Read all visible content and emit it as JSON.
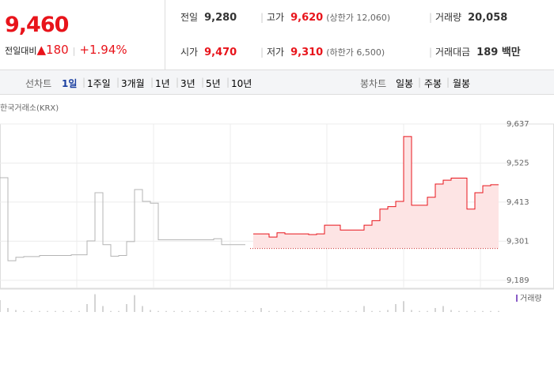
{
  "quote": {
    "price": "9,460",
    "change_label": "전일대비",
    "change": "180",
    "change_pct": "+1.94%"
  },
  "stats": [
    {
      "label": "전일",
      "value": "9,280"
    },
    {
      "label": "고가",
      "value": "9,620",
      "note": "(상한가 12,060)"
    },
    {
      "label": "거래량",
      "value": "20,058"
    },
    {
      "label": "시가",
      "value": "9,470"
    },
    {
      "label": "저가",
      "value": "9,310",
      "note": "(하한가 6,500)"
    },
    {
      "label": "거래대금",
      "value": "189 백만"
    }
  ],
  "tabs": {
    "line_label": "선차트",
    "line": [
      "1일",
      "1주일",
      "3개월",
      "1년",
      "3년",
      "5년",
      "10년"
    ],
    "candle_label": "봉차트",
    "candle": [
      "일봉",
      "주봉",
      "월봉"
    ]
  },
  "chart_data": {
    "type": "line",
    "source": "한국거래소(KRX)",
    "categories": [
      null,
      null,
      null,
      null,
      null,
      null,
      null,
      null,
      null,
      null,
      null,
      null,
      null,
      null,
      null,
      null,
      null,
      null,
      null,
      null,
      null,
      null,
      null,
      null,
      null,
      null,
      null,
      null,
      null,
      null,
      null,
      null,
      null,
      null,
      null,
      null,
      null,
      null,
      null,
      null,
      null,
      null,
      null,
      null,
      null,
      null,
      null,
      null,
      null,
      null,
      null,
      null,
      null,
      null,
      null,
      null,
      null,
      null,
      null,
      null,
      null,
      null,
      null,
      null
    ],
    "series": [
      {
        "color": "#b4b4b4",
        "values": [
          9483,
          9245,
          9255,
          9257,
          9257,
          9260,
          9260,
          9260,
          9260,
          9262,
          9262,
          9302,
          9440,
          9291,
          9258,
          9260,
          9300,
          9449,
          9415,
          9410,
          9305,
          9305,
          9305,
          9305,
          9305,
          9305,
          9305,
          9308,
          9291,
          9291,
          9291,
          9291,
          null,
          null,
          null,
          null,
          null,
          null,
          null,
          null,
          null,
          null,
          null,
          null,
          null,
          null,
          null,
          null,
          null,
          null,
          null,
          null,
          null,
          null,
          null,
          null,
          null,
          null,
          null,
          null,
          null,
          null,
          null,
          null
        ]
      },
      {
        "color": "#e8141b",
        "fill": "#fde4e4",
        "values": [
          null,
          null,
          null,
          null,
          null,
          null,
          null,
          null,
          null,
          null,
          null,
          null,
          null,
          null,
          null,
          null,
          null,
          null,
          null,
          null,
          null,
          null,
          null,
          null,
          null,
          null,
          null,
          null,
          null,
          null,
          null,
          null,
          9322,
          9322,
          9313,
          9325,
          9322,
          9322,
          9322,
          9320,
          9322,
          9347,
          9347,
          9333,
          9333,
          9333,
          9347,
          9360,
          9393,
          9400,
          9415,
          9601,
          9404,
          9404,
          9427,
          9465,
          9476,
          9482,
          9482,
          9393,
          9440,
          9460,
          9463,
          9463
        ]
      }
    ],
    "reference_line": 9280,
    "ylim": [
      9166,
      9637
    ],
    "yticks": [
      {
        "value": 9189,
        "label": "9,189"
      },
      {
        "value": 9301,
        "label": "9,301"
      },
      {
        "value": 9413,
        "label": "9,413"
      },
      {
        "value": 9525,
        "label": "9,525"
      },
      {
        "value": 9637,
        "label": "9,637"
      }
    ],
    "grid": true,
    "volume": {
      "name": "거래량",
      "color": "#aaaaaa",
      "ylim": [
        0,
        100
      ],
      "values": [
        60,
        20,
        10,
        5,
        5,
        5,
        5,
        5,
        5,
        5,
        5,
        40,
        90,
        30,
        5,
        5,
        40,
        85,
        30,
        10,
        5,
        5,
        5,
        5,
        5,
        5,
        5,
        5,
        5,
        5,
        5,
        5,
        5,
        20,
        5,
        5,
        5,
        5,
        5,
        5,
        5,
        5,
        5,
        5,
        5,
        5,
        30,
        5,
        5,
        10,
        40,
        55,
        10,
        5,
        5,
        20,
        30,
        10,
        5,
        5,
        5,
        5,
        5,
        5
      ]
    }
  }
}
